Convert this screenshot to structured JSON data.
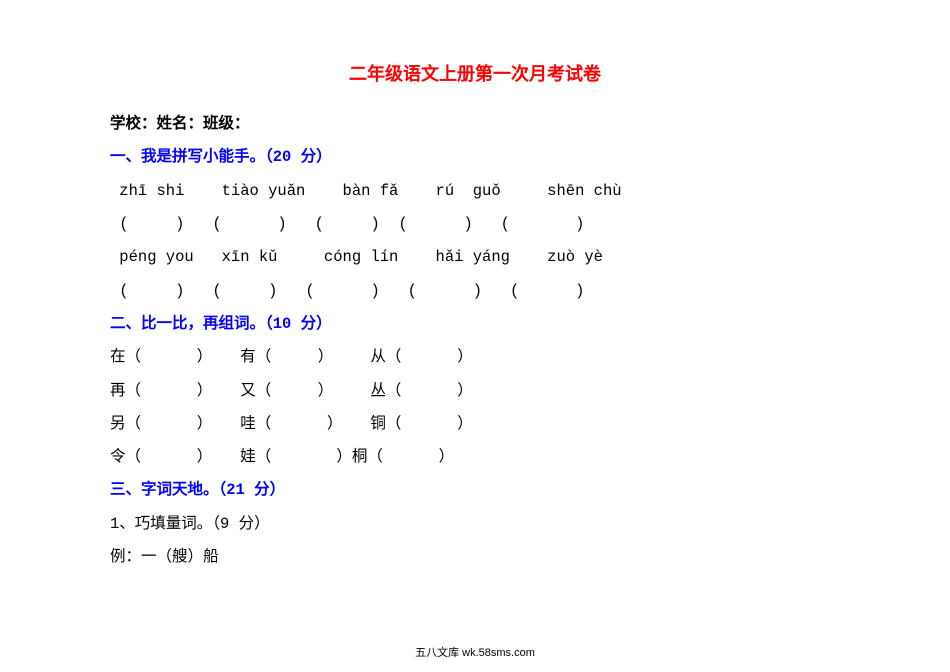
{
  "colors": {
    "title": "#ff0000",
    "heading": "#0000ff",
    "body": "#000000",
    "background": "#ffffff"
  },
  "font": {
    "title_size": 18,
    "body_size": 15.5,
    "footer_size": 11,
    "line_height": 2.15
  },
  "title": "二年级语文上册第一次月考试卷",
  "info_line": "学校：姓名：班级：",
  "s1": {
    "heading": "一、我是拼写小能手。（20 分）",
    "row1": " zhī shi    tiào yuǎn    bàn fǎ    rú  guǒ     shēn chù",
    "row2": " (     )   (      )   (     )  (      )   (       )",
    "row3": " péng you   xīn kǔ     cóng lín    hǎi yáng    zuò yè",
    "row4": " (     )   (     )   (      )   (      )   (      )"
  },
  "s2": {
    "heading": "二、比一比，再组词。（10 分）",
    "r1": "在（      ）   有（     ）    从（      ）",
    "r2": "再（      ）   又（     ）    丛（      ）",
    "r3": "另（      ）   哇（      ）   铜（      ）",
    "r4": "令（      ）   娃（       ）桐（      ）"
  },
  "s3": {
    "heading": "三、字词天地。（21 分）",
    "line1": "1、巧填量词。（9 分）",
    "line2": "例：一（艘）船"
  },
  "footer": "五八文库 wk.58sms.com"
}
